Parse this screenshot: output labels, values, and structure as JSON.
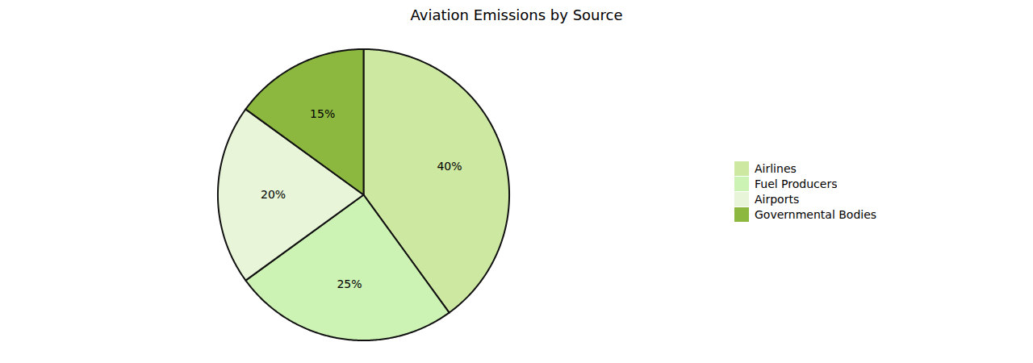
{
  "chart_data": {
    "type": "pie",
    "title": "Aviation Emissions by Source",
    "categories": [
      "Airlines",
      "Fuel Producers",
      "Airports",
      "Governmental Bodies"
    ],
    "values": [
      40,
      25,
      20,
      15
    ],
    "value_labels": [
      "40%",
      "25%",
      "20%",
      "15%"
    ],
    "colors": [
      "#cde8a0",
      "#ccf2b4",
      "#e8f5d8",
      "#8db840"
    ],
    "data_labels": true,
    "legend": "right"
  }
}
